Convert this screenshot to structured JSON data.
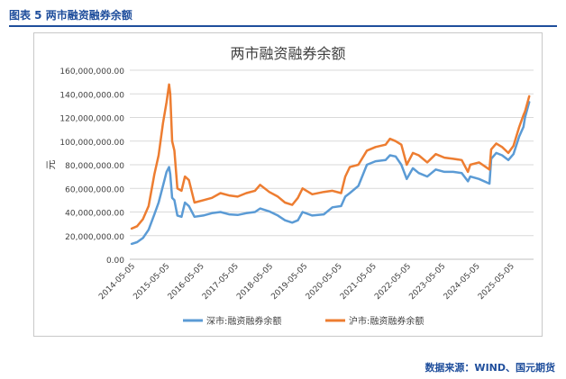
{
  "header": {
    "figure_title": "图表 5  两市融资融券余额"
  },
  "footer": {
    "source": "数据来源：WIND、国元期货"
  },
  "chart_data": {
    "type": "line",
    "title": "两市融资融券余额",
    "ylabel": "元",
    "xlabel": "",
    "ylim": [
      0,
      160000000
    ],
    "ytick_labels": [
      "0.00",
      "20,000,000.00",
      "40,000,000.00",
      "60,000,000.00",
      "80,000,000.00",
      "100,000,000.00",
      "120,000,000.00",
      "140,000,000.00",
      "160,000,000.00"
    ],
    "ytick_values": [
      0,
      20000000,
      40000000,
      60000000,
      80000000,
      100000000,
      120000000,
      140000000,
      160000000
    ],
    "xlim": [
      "2014-04-15",
      "2025-12-31"
    ],
    "xtick_labels": [
      "2014-05-05",
      "2015-05-05",
      "2016-05-05",
      "2017-05-05",
      "2018-05-05",
      "2019-05-05",
      "2020-05-05",
      "2021-05-05",
      "2022-05-05",
      "2023-05-05",
      "2024-05-05",
      "2025-05-05"
    ],
    "grid": true,
    "legend_position": "bottom",
    "series": [
      {
        "name": "深市:融资融券余额",
        "color": "#5b9bd5",
        "x": [
          "2014-05-05",
          "2014-07-01",
          "2014-09-01",
          "2014-11-01",
          "2015-01-01",
          "2015-02-15",
          "2015-04-01",
          "2015-05-10",
          "2015-06-05",
          "2015-06-18",
          "2015-07-08",
          "2015-08-01",
          "2015-09-01",
          "2015-10-15",
          "2015-11-20",
          "2016-01-01",
          "2016-03-01",
          "2016-06-01",
          "2016-09-01",
          "2016-12-01",
          "2017-03-01",
          "2017-06-01",
          "2017-09-01",
          "2017-12-01",
          "2018-01-25",
          "2018-05-01",
          "2018-08-01",
          "2018-10-15",
          "2018-12-31",
          "2019-03-01",
          "2019-04-20",
          "2019-08-01",
          "2019-12-01",
          "2020-03-01",
          "2020-06-01",
          "2020-07-15",
          "2020-09-01",
          "2020-12-01",
          "2021-03-01",
          "2021-06-01",
          "2021-09-15",
          "2021-11-01",
          "2021-12-31",
          "2022-03-01",
          "2022-04-27",
          "2022-07-01",
          "2022-09-01",
          "2022-12-01",
          "2023-03-01",
          "2023-06-01",
          "2023-09-01",
          "2023-12-01",
          "2024-02-05",
          "2024-03-01",
          "2024-06-01",
          "2024-09-20",
          "2024-10-08",
          "2024-12-01",
          "2025-02-01",
          "2025-04-08",
          "2025-06-01",
          "2025-08-01",
          "2025-09-15",
          "2025-10-01",
          "2025-11-15"
        ],
        "values": [
          13000000,
          14500000,
          18000000,
          25000000,
          38000000,
          48000000,
          62000000,
          74000000,
          78000000,
          72000000,
          52000000,
          50000000,
          37000000,
          36000000,
          48000000,
          45000000,
          36000000,
          37000000,
          39000000,
          40000000,
          38000000,
          37500000,
          39000000,
          40000000,
          43000000,
          40500000,
          37000000,
          33000000,
          31000000,
          33000000,
          40000000,
          37000000,
          38000000,
          44000000,
          45000000,
          53000000,
          56000000,
          62000000,
          80000000,
          83000000,
          84000000,
          88000000,
          87000000,
          80000000,
          68000000,
          77000000,
          73000000,
          70000000,
          76000000,
          74000000,
          74000000,
          73000000,
          66000000,
          70000000,
          68000000,
          64000000,
          85000000,
          90000000,
          88000000,
          84000000,
          89000000,
          104000000,
          112000000,
          120000000,
          133000000
        ]
      },
      {
        "name": "沪市:融资融券余额",
        "color": "#ed7d31",
        "x": [
          "2014-05-05",
          "2014-07-01",
          "2014-09-01",
          "2014-11-01",
          "2015-01-01",
          "2015-02-15",
          "2015-04-01",
          "2015-05-10",
          "2015-06-05",
          "2015-06-18",
          "2015-07-08",
          "2015-08-01",
          "2015-09-01",
          "2015-10-15",
          "2015-11-20",
          "2016-01-01",
          "2016-03-01",
          "2016-06-01",
          "2016-09-01",
          "2016-12-01",
          "2017-03-01",
          "2017-06-01",
          "2017-09-01",
          "2017-12-01",
          "2018-01-25",
          "2018-05-01",
          "2018-08-01",
          "2018-10-15",
          "2018-12-31",
          "2019-03-01",
          "2019-04-20",
          "2019-08-01",
          "2019-12-01",
          "2020-03-01",
          "2020-06-01",
          "2020-07-15",
          "2020-09-01",
          "2020-12-01",
          "2021-03-01",
          "2021-06-01",
          "2021-09-15",
          "2021-11-01",
          "2021-12-31",
          "2022-03-01",
          "2022-04-27",
          "2022-07-01",
          "2022-09-01",
          "2022-12-01",
          "2023-03-01",
          "2023-06-01",
          "2023-09-01",
          "2023-12-01",
          "2024-02-05",
          "2024-03-01",
          "2024-06-01",
          "2024-09-20",
          "2024-10-08",
          "2024-12-01",
          "2025-02-01",
          "2025-04-08",
          "2025-06-01",
          "2025-08-01",
          "2025-09-15",
          "2025-10-01",
          "2025-11-15"
        ],
        "values": [
          26000000,
          28000000,
          34000000,
          45000000,
          72000000,
          88000000,
          115000000,
          133000000,
          148000000,
          140000000,
          100000000,
          92000000,
          60000000,
          58000000,
          70000000,
          67000000,
          48000000,
          50000000,
          52000000,
          56000000,
          54000000,
          53000000,
          56000000,
          58000000,
          63000000,
          57000000,
          53000000,
          48000000,
          46000000,
          52000000,
          60000000,
          55000000,
          57000000,
          58000000,
          56000000,
          70000000,
          78000000,
          80000000,
          92000000,
          95000000,
          97000000,
          102000000,
          100000000,
          97000000,
          80000000,
          90000000,
          88000000,
          82000000,
          89000000,
          86000000,
          85000000,
          84000000,
          74000000,
          80000000,
          82000000,
          76000000,
          93000000,
          98000000,
          95000000,
          90000000,
          96000000,
          112000000,
          122000000,
          125000000,
          138000000
        ]
      }
    ]
  }
}
